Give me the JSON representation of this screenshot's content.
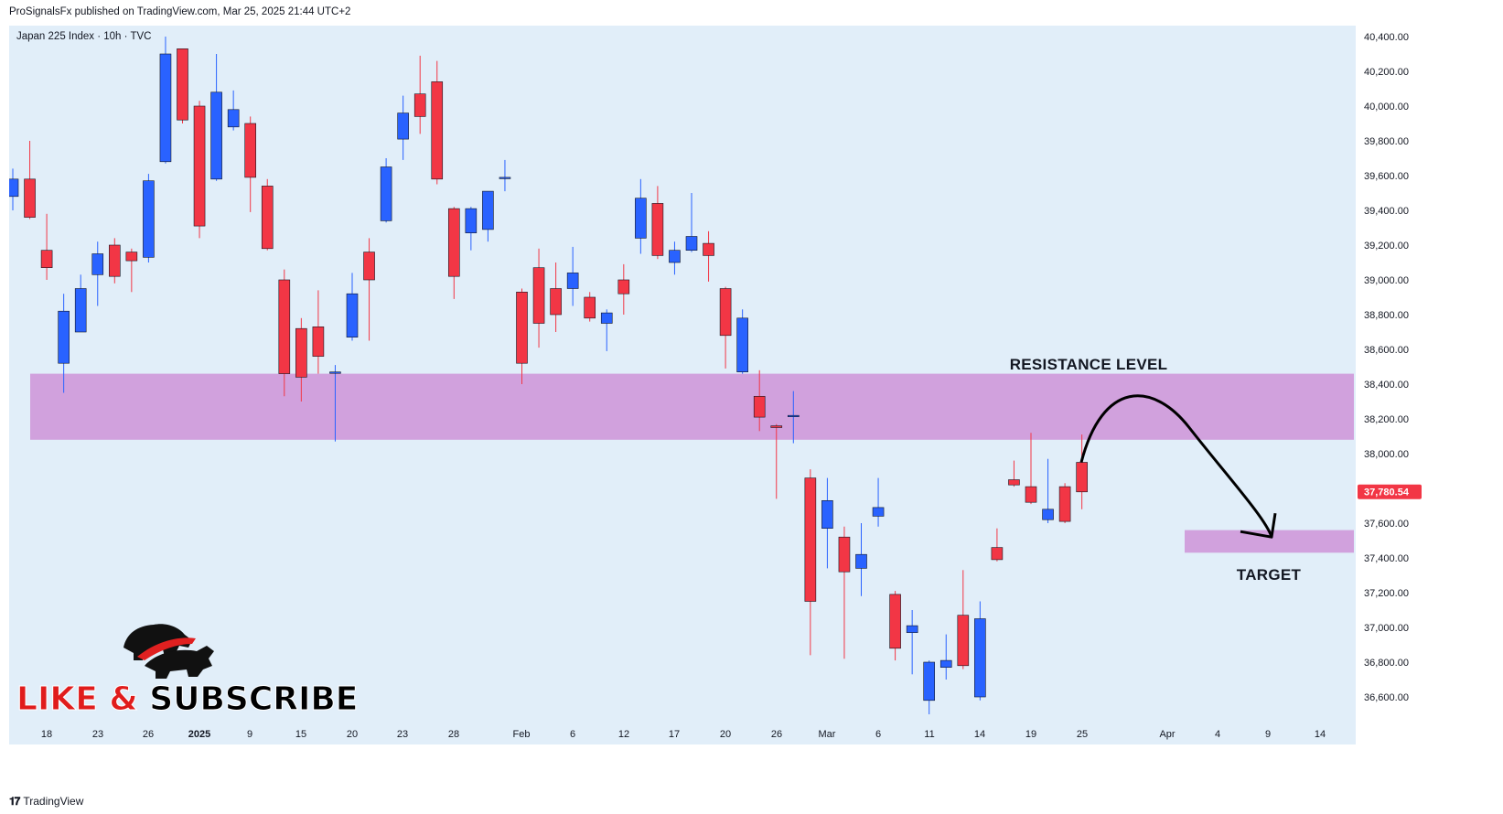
{
  "header": {
    "publisher_line": "ProSignalsFx published on TradingView.com, Mar 25, 2025 21:44 UTC+2"
  },
  "footer": {
    "logo_text": "TradingView"
  },
  "colors": {
    "background": "#e1eef9",
    "bull": "#2962ff",
    "bear": "#f23645",
    "zone": "#ce93d8",
    "last_price_bg": "#f23645",
    "text": "#131722"
  },
  "chart_data": {
    "type": "candlestick",
    "title": "Japan 225 Index · 10h · TVC",
    "ylim": [
      36450,
      40500
    ],
    "price_ticks": [
      "40,400.00",
      "40,200.00",
      "40,000.00",
      "39,800.00",
      "39,600.00",
      "39,400.00",
      "39,200.00",
      "39,000.00",
      "38,800.00",
      "38,600.00",
      "38,400.00",
      "38,200.00",
      "38,000.00",
      "37,600.00",
      "37,400.00",
      "37,200.00",
      "37,000.00",
      "36,800.00",
      "36,600.00"
    ],
    "price_tick_values": [
      40400,
      40200,
      40000,
      39800,
      39600,
      39400,
      39200,
      39000,
      38800,
      38600,
      38400,
      38200,
      38000,
      37600,
      37400,
      37200,
      37000,
      36800,
      36600
    ],
    "time_ticks": [
      {
        "label": "18",
        "bold": false
      },
      {
        "label": "23",
        "bold": false
      },
      {
        "label": "26",
        "bold": false
      },
      {
        "label": "2025",
        "bold": true
      },
      {
        "label": "9",
        "bold": false
      },
      {
        "label": "15",
        "bold": false
      },
      {
        "label": "20",
        "bold": false
      },
      {
        "label": "23",
        "bold": false
      },
      {
        "label": "28",
        "bold": false
      },
      {
        "label": "Feb",
        "bold": false
      },
      {
        "label": "6",
        "bold": false
      },
      {
        "label": "12",
        "bold": false
      },
      {
        "label": "17",
        "bold": false
      },
      {
        "label": "20",
        "bold": false
      },
      {
        "label": "26",
        "bold": false
      },
      {
        "label": "Mar",
        "bold": false
      },
      {
        "label": "6",
        "bold": false
      },
      {
        "label": "11",
        "bold": false
      },
      {
        "label": "14",
        "bold": false
      },
      {
        "label": "19",
        "bold": false
      },
      {
        "label": "25",
        "bold": false
      },
      {
        "label": "Apr",
        "bold": false
      },
      {
        "label": "4",
        "bold": false
      },
      {
        "label": "9",
        "bold": false
      },
      {
        "label": "14",
        "bold": false
      }
    ],
    "last_price": 37780.54,
    "last_price_label": "37,780.54",
    "candles": [
      {
        "o": 39480,
        "h": 39640,
        "l": 39400,
        "c": 39580
      },
      {
        "o": 39580,
        "h": 39800,
        "l": 39350,
        "c": 39360
      },
      {
        "o": 39170,
        "h": 39380,
        "l": 39000,
        "c": 39070
      },
      {
        "o": 38520,
        "h": 38920,
        "l": 38350,
        "c": 38820
      },
      {
        "o": 38700,
        "h": 39030,
        "l": 38700,
        "c": 38950
      },
      {
        "o": 39030,
        "h": 39220,
        "l": 38850,
        "c": 39150
      },
      {
        "o": 39200,
        "h": 39240,
        "l": 38980,
        "c": 39020
      },
      {
        "o": 39160,
        "h": 39180,
        "l": 38930,
        "c": 39110
      },
      {
        "o": 39130,
        "h": 39610,
        "l": 39100,
        "c": 39570
      },
      {
        "o": 39680,
        "h": 40400,
        "l": 39670,
        "c": 40300
      },
      {
        "o": 40330,
        "h": 40330,
        "l": 39900,
        "c": 39920
      },
      {
        "o": 40000,
        "h": 40030,
        "l": 39240,
        "c": 39310
      },
      {
        "o": 39580,
        "h": 40300,
        "l": 39570,
        "c": 40080
      },
      {
        "o": 39880,
        "h": 40090,
        "l": 39860,
        "c": 39980
      },
      {
        "o": 39900,
        "h": 39940,
        "l": 39390,
        "c": 39590
      },
      {
        "o": 39540,
        "h": 39580,
        "l": 39170,
        "c": 39180
      },
      {
        "o": 39000,
        "h": 39060,
        "l": 38330,
        "c": 38460
      },
      {
        "o": 38720,
        "h": 38780,
        "l": 38300,
        "c": 38440
      },
      {
        "o": 38730,
        "h": 38940,
        "l": 38460,
        "c": 38560
      },
      {
        "o": 38470,
        "h": 38510,
        "l": 38070,
        "c": 38470
      },
      {
        "o": 38670,
        "h": 39040,
        "l": 38650,
        "c": 38920
      },
      {
        "o": 39160,
        "h": 39240,
        "l": 38650,
        "c": 39000
      },
      {
        "o": 39340,
        "h": 39700,
        "l": 39330,
        "c": 39650
      },
      {
        "o": 39810,
        "h": 40060,
        "l": 39690,
        "c": 39960
      },
      {
        "o": 40070,
        "h": 40290,
        "l": 39840,
        "c": 39940
      },
      {
        "o": 40140,
        "h": 40260,
        "l": 39550,
        "c": 39580
      },
      {
        "o": 39410,
        "h": 39420,
        "l": 38890,
        "c": 39020
      },
      {
        "o": 39270,
        "h": 39420,
        "l": 39170,
        "c": 39410
      },
      {
        "o": 39290,
        "h": 39510,
        "l": 39220,
        "c": 39510
      },
      {
        "o": 39590,
        "h": 39690,
        "l": 39510,
        "c": 39590
      },
      {
        "o": 38930,
        "h": 38950,
        "l": 38400,
        "c": 38520
      },
      {
        "o": 39070,
        "h": 39180,
        "l": 38610,
        "c": 38750
      },
      {
        "o": 38950,
        "h": 39100,
        "l": 38700,
        "c": 38800
      },
      {
        "o": 38950,
        "h": 39190,
        "l": 38850,
        "c": 39040
      },
      {
        "o": 38900,
        "h": 38930,
        "l": 38760,
        "c": 38780
      },
      {
        "o": 38750,
        "h": 38830,
        "l": 38590,
        "c": 38810
      },
      {
        "o": 39000,
        "h": 39090,
        "l": 38800,
        "c": 38920
      },
      {
        "o": 39240,
        "h": 39580,
        "l": 39150,
        "c": 39470
      },
      {
        "o": 39440,
        "h": 39540,
        "l": 39120,
        "c": 39140
      },
      {
        "o": 39100,
        "h": 39220,
        "l": 39030,
        "c": 39170
      },
      {
        "o": 39170,
        "h": 39500,
        "l": 39160,
        "c": 39250
      },
      {
        "o": 39210,
        "h": 39280,
        "l": 38990,
        "c": 39140
      },
      {
        "o": 38950,
        "h": 38960,
        "l": 38490,
        "c": 38680
      },
      {
        "o": 38470,
        "h": 38830,
        "l": 38460,
        "c": 38780
      },
      {
        "o": 38330,
        "h": 38480,
        "l": 38130,
        "c": 38210
      },
      {
        "o": 38160,
        "h": 38170,
        "l": 37740,
        "c": 38150
      },
      {
        "o": 38220,
        "h": 38360,
        "l": 38060,
        "c": 38220
      },
      {
        "o": 37860,
        "h": 37910,
        "l": 36840,
        "c": 37150
      },
      {
        "o": 37570,
        "h": 37860,
        "l": 37340,
        "c": 37730
      },
      {
        "o": 37520,
        "h": 37580,
        "l": 36820,
        "c": 37320
      },
      {
        "o": 37340,
        "h": 37600,
        "l": 37180,
        "c": 37420
      },
      {
        "o": 37640,
        "h": 37860,
        "l": 37580,
        "c": 37690
      },
      {
        "o": 37190,
        "h": 37210,
        "l": 36810,
        "c": 36880
      },
      {
        "o": 36970,
        "h": 37100,
        "l": 36730,
        "c": 37010
      },
      {
        "o": 36580,
        "h": 36810,
        "l": 36500,
        "c": 36800
      },
      {
        "o": 36770,
        "h": 36960,
        "l": 36700,
        "c": 36810
      },
      {
        "o": 37070,
        "h": 37330,
        "l": 36760,
        "c": 36780
      },
      {
        "o": 36600,
        "h": 37150,
        "l": 36580,
        "c": 37050
      },
      {
        "o": 37460,
        "h": 37570,
        "l": 37380,
        "c": 37390
      },
      {
        "o": 37850,
        "h": 37960,
        "l": 37810,
        "c": 37820
      },
      {
        "o": 37810,
        "h": 38120,
        "l": 37710,
        "c": 37720
      },
      {
        "o": 37620,
        "h": 37970,
        "l": 37600,
        "c": 37680
      },
      {
        "o": 37810,
        "h": 37830,
        "l": 37600,
        "c": 37610
      },
      {
        "o": 37950,
        "h": 38110,
        "l": 37680,
        "c": 37780
      }
    ]
  },
  "annotations": {
    "resistance_label": "RESISTANCE LEVEL",
    "target_label": "TARGET",
    "resistance_zone": {
      "low": 38080,
      "high": 38460
    },
    "target_zone": {
      "low": 37430,
      "high": 37560
    },
    "arrow_start_value": 37950,
    "arrow_peak_value": 38300,
    "arrow_end_value": 37520
  },
  "promo": {
    "text": "LIKE & SUBSCRIBE",
    "part1": "LIKE ",
    "amp": "&",
    "part2": " SUBSCRIBE",
    "logo_icon": "bull-bear-logo-icon"
  }
}
